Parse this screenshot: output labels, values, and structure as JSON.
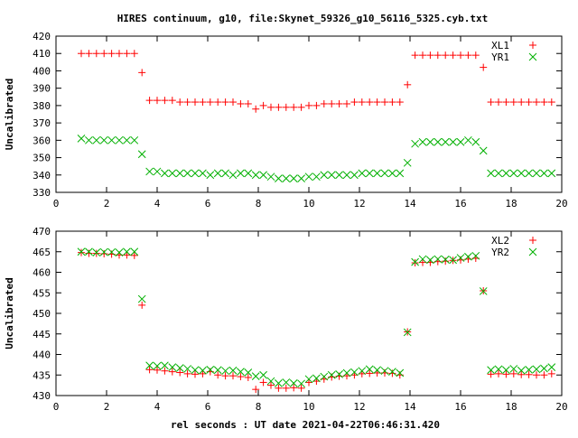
{
  "title": "HIRES continuum, g10, file:Skynet_59326_g10_56116_5325.cyb.txt",
  "xlabel": "rel seconds : UT date 2021-04-22T06:46:31.420",
  "colors": {
    "xl": "#ff0000",
    "yr": "#00b000",
    "axis": "#000000"
  },
  "chart_data": [
    {
      "type": "scatter",
      "ylabel": "Uncalibrated",
      "xlim": [
        0,
        20
      ],
      "ylim": [
        330,
        420
      ],
      "xticks": [
        0,
        2,
        4,
        6,
        8,
        10,
        12,
        14,
        16,
        18,
        20
      ],
      "yticks": [
        330,
        340,
        350,
        360,
        370,
        380,
        390,
        400,
        410,
        420
      ],
      "legend_position": "top-right",
      "series": [
        {
          "name": "XL1",
          "marker": "plus",
          "color_key": "xl",
          "x": [
            1.0,
            1.3,
            1.6,
            1.9,
            2.2,
            2.5,
            2.8,
            3.1,
            3.4,
            3.7,
            4.0,
            4.3,
            4.6,
            4.9,
            5.2,
            5.5,
            5.8,
            6.1,
            6.4,
            6.7,
            7.0,
            7.3,
            7.6,
            7.9,
            8.2,
            8.5,
            8.8,
            9.1,
            9.4,
            9.7,
            10.0,
            10.3,
            10.6,
            10.9,
            11.2,
            11.5,
            11.8,
            12.1,
            12.4,
            12.7,
            13.0,
            13.3,
            13.6,
            13.9,
            14.2,
            14.5,
            14.8,
            15.1,
            15.4,
            15.7,
            16.0,
            16.3,
            16.6,
            16.9,
            17.2,
            17.5,
            17.8,
            18.1,
            18.4,
            18.7,
            19.0,
            19.3,
            19.6
          ],
          "y": [
            410,
            410,
            410,
            410,
            410,
            410,
            410,
            410,
            399,
            383,
            383,
            383,
            383,
            382,
            382,
            382,
            382,
            382,
            382,
            382,
            382,
            381,
            381,
            378,
            380,
            379,
            379,
            379,
            379,
            379,
            380,
            380,
            381,
            381,
            381,
            381,
            382,
            382,
            382,
            382,
            382,
            382,
            382,
            392,
            409,
            409,
            409,
            409,
            409,
            409,
            409,
            409,
            409,
            402,
            382,
            382,
            382,
            382,
            382,
            382,
            382,
            382,
            382
          ]
        },
        {
          "name": "YR1",
          "marker": "x",
          "color_key": "yr",
          "x": [
            1.0,
            1.3,
            1.6,
            1.9,
            2.2,
            2.5,
            2.8,
            3.1,
            3.4,
            3.7,
            4.0,
            4.3,
            4.6,
            4.9,
            5.2,
            5.5,
            5.8,
            6.1,
            6.4,
            6.7,
            7.0,
            7.3,
            7.6,
            7.9,
            8.2,
            8.5,
            8.8,
            9.1,
            9.4,
            9.7,
            10.0,
            10.3,
            10.6,
            10.9,
            11.2,
            11.5,
            11.8,
            12.1,
            12.4,
            12.7,
            13.0,
            13.3,
            13.6,
            13.9,
            14.2,
            14.5,
            14.8,
            15.1,
            15.4,
            15.7,
            16.0,
            16.3,
            16.6,
            16.9,
            17.2,
            17.5,
            17.8,
            18.1,
            18.4,
            18.7,
            19.0,
            19.3,
            19.6
          ],
          "y": [
            361,
            360,
            360,
            360,
            360,
            360,
            360,
            360,
            352,
            342,
            342,
            341,
            341,
            341,
            341,
            341,
            341,
            340,
            341,
            341,
            340,
            341,
            341,
            340,
            340,
            339,
            338,
            338,
            338,
            338,
            339,
            339,
            340,
            340,
            340,
            340,
            340,
            341,
            341,
            341,
            341,
            341,
            341,
            347,
            358,
            359,
            359,
            359,
            359,
            359,
            359,
            360,
            359,
            354,
            341,
            341,
            341,
            341,
            341,
            341,
            341,
            341,
            341
          ]
        }
      ]
    },
    {
      "type": "scatter",
      "ylabel": "Uncalibrated",
      "xlim": [
        0,
        20
      ],
      "ylim": [
        430,
        470
      ],
      "xticks": [
        0,
        2,
        4,
        6,
        8,
        10,
        12,
        14,
        16,
        18,
        20
      ],
      "yticks": [
        430,
        435,
        440,
        445,
        450,
        455,
        460,
        465,
        470
      ],
      "legend_position": "top-right",
      "series": [
        {
          "name": "XL2",
          "marker": "plus",
          "color_key": "xl",
          "x": [
            1.0,
            1.3,
            1.6,
            1.9,
            2.2,
            2.5,
            2.8,
            3.1,
            3.4,
            3.7,
            4.0,
            4.3,
            4.6,
            4.9,
            5.2,
            5.5,
            5.8,
            6.1,
            6.4,
            6.7,
            7.0,
            7.3,
            7.6,
            7.9,
            8.2,
            8.5,
            8.8,
            9.1,
            9.4,
            9.7,
            10.0,
            10.3,
            10.6,
            10.9,
            11.2,
            11.5,
            11.8,
            12.1,
            12.4,
            12.7,
            13.0,
            13.3,
            13.6,
            13.9,
            14.2,
            14.5,
            14.8,
            15.1,
            15.4,
            15.7,
            16.0,
            16.3,
            16.6,
            16.9,
            17.2,
            17.5,
            17.8,
            18.1,
            18.4,
            18.7,
            19.0,
            19.3,
            19.6
          ],
          "y": [
            464.8,
            464.6,
            464.6,
            464.5,
            464.4,
            464.2,
            464.2,
            464.1,
            452,
            436.3,
            436.2,
            436.0,
            435.8,
            435.6,
            435.3,
            435.2,
            435.3,
            435.8,
            435.0,
            434.8,
            434.8,
            434.6,
            434.4,
            431.5,
            433.2,
            432.5,
            431.8,
            431.8,
            431.9,
            431.8,
            433.2,
            433.5,
            434.0,
            434.5,
            434.7,
            434.8,
            435.0,
            435.3,
            435.4,
            435.5,
            435.5,
            435.4,
            435.0,
            445.5,
            462.3,
            462.4,
            462.4,
            462.6,
            462.7,
            462.9,
            463.0,
            463.2,
            463.4,
            455.5,
            435.2,
            435.3,
            435.2,
            435.3,
            435.1,
            435.1,
            435.0,
            435.0,
            435.3
          ]
        },
        {
          "name": "YR2",
          "marker": "x",
          "color_key": "yr",
          "x": [
            1.0,
            1.3,
            1.6,
            1.9,
            2.2,
            2.5,
            2.8,
            3.1,
            3.4,
            3.7,
            4.0,
            4.3,
            4.6,
            4.9,
            5.2,
            5.5,
            5.8,
            6.1,
            6.4,
            6.7,
            7.0,
            7.3,
            7.6,
            7.9,
            8.2,
            8.5,
            8.8,
            9.1,
            9.4,
            9.7,
            10.0,
            10.3,
            10.6,
            10.9,
            11.2,
            11.5,
            11.8,
            12.1,
            12.4,
            12.7,
            13.0,
            13.3,
            13.6,
            13.9,
            14.2,
            14.5,
            14.8,
            15.1,
            15.4,
            15.7,
            16.0,
            16.3,
            16.6,
            16.9,
            17.2,
            17.5,
            17.8,
            18.1,
            18.4,
            18.7,
            19.0,
            19.3,
            19.6
          ],
          "y": [
            465.0,
            465.0,
            464.8,
            464.9,
            464.9,
            464.8,
            465.0,
            465.0,
            453.5,
            437.3,
            437.2,
            437.3,
            436.9,
            436.7,
            436.5,
            436.2,
            436.1,
            436.3,
            436.2,
            436.0,
            436.1,
            435.8,
            435.6,
            434.7,
            435.0,
            433.5,
            433.0,
            433.2,
            433.0,
            432.9,
            434.0,
            434.2,
            434.6,
            435.0,
            435.2,
            435.5,
            435.7,
            436.0,
            436.4,
            436.2,
            436.0,
            435.8,
            435.5,
            445.4,
            462.5,
            463.2,
            463.0,
            463.2,
            463.1,
            463.0,
            463.5,
            463.8,
            464.0,
            455.4,
            436.2,
            436.4,
            436.2,
            436.5,
            436.1,
            436.3,
            436.4,
            436.6,
            436.9
          ]
        }
      ]
    }
  ]
}
